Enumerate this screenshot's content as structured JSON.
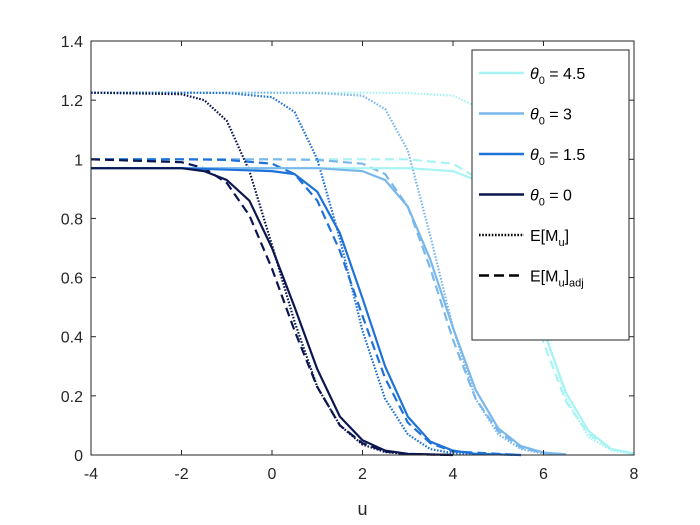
{
  "chart_data": {
    "type": "line",
    "title": "",
    "xlabel": "u",
    "ylabel": "",
    "xlim": [
      -4,
      8
    ],
    "ylim": [
      0,
      1.4
    ],
    "xticks": [
      "-4",
      "-2",
      "0",
      "2",
      "4",
      "6",
      "8"
    ],
    "yticks": [
      "0",
      "0.2",
      "0.4",
      "0.6",
      "0.8",
      "1",
      "1.2",
      "1.4"
    ],
    "grid": false,
    "legend_position": "top-right",
    "legend": {
      "theta_symbol": "θ",
      "theta_sub": "0",
      "expectation_label": "E[M",
      "expectation_sub": "u",
      "expectation_close": "]",
      "adjusted_sub": "adj",
      "entries": [
        {
          "value_text": " = 4.5",
          "color": "#a8f4f4",
          "style": "solid"
        },
        {
          "value_text": " = 3",
          "color": "#7ab8ec",
          "style": "solid"
        },
        {
          "value_text": " = 1.5",
          "color": "#1f72d8",
          "style": "solid"
        },
        {
          "value_text": " = 0",
          "color": "#0b1650",
          "style": "solid"
        },
        {
          "value_text": "",
          "color": "#000000",
          "style": "dotted"
        },
        {
          "value_text": "",
          "color": "#000000",
          "style": "dashed"
        }
      ]
    },
    "series": [
      {
        "theta0": 4.5,
        "kind": "solid",
        "color": "#a8f4f4",
        "x": [
          -4,
          -2,
          0,
          2,
          3,
          4,
          4.5,
          5,
          5.5,
          6,
          6.5,
          7,
          7.5,
          8
        ],
        "y": [
          0.97,
          0.97,
          0.97,
          0.97,
          0.97,
          0.96,
          0.93,
          0.84,
          0.66,
          0.42,
          0.21,
          0.08,
          0.02,
          0.005
        ]
      },
      {
        "theta0": 3,
        "kind": "solid",
        "color": "#7ab8ec",
        "x": [
          -4,
          -2,
          0,
          1,
          2,
          2.5,
          3,
          3.5,
          4,
          4.5,
          5,
          5.5,
          6,
          6.5
        ],
        "y": [
          0.97,
          0.97,
          0.97,
          0.97,
          0.96,
          0.93,
          0.84,
          0.66,
          0.43,
          0.22,
          0.09,
          0.03,
          0.008,
          0.002
        ]
      },
      {
        "theta0": 1.5,
        "kind": "solid",
        "color": "#1f72d8",
        "x": [
          -4,
          -2,
          0,
          0.5,
          1,
          1.5,
          2,
          2.5,
          3,
          3.5,
          4,
          4.5,
          5.5
        ],
        "y": [
          0.97,
          0.97,
          0.96,
          0.95,
          0.89,
          0.75,
          0.53,
          0.3,
          0.13,
          0.045,
          0.015,
          0.004,
          0.0
        ]
      },
      {
        "theta0": 0,
        "kind": "solid",
        "color": "#0b1650",
        "x": [
          -4,
          -2,
          -1.5,
          -1,
          -0.5,
          0,
          0.5,
          1,
          1.5,
          2,
          2.5,
          3,
          4
        ],
        "y": [
          0.97,
          0.97,
          0.96,
          0.93,
          0.86,
          0.7,
          0.5,
          0.29,
          0.13,
          0.05,
          0.015,
          0.004,
          0.0
        ]
      },
      {
        "theta0": 4.5,
        "kind": "dotted",
        "color": "#a8f4f4",
        "x": [
          -4,
          -2,
          0,
          2,
          3,
          4,
          4.5,
          5,
          5.5,
          6,
          6.5,
          7,
          7.5,
          8
        ],
        "y": [
          1.225,
          1.225,
          1.225,
          1.225,
          1.224,
          1.215,
          1.18,
          1.05,
          0.76,
          0.44,
          0.19,
          0.06,
          0.015,
          0.003
        ]
      },
      {
        "theta0": 3,
        "kind": "dotted",
        "color": "#7ab8ec",
        "x": [
          -4,
          -2,
          0,
          1,
          2,
          2.5,
          3,
          3.5,
          4,
          4.5,
          5,
          5.5,
          6,
          6.5
        ],
        "y": [
          1.225,
          1.225,
          1.225,
          1.224,
          1.215,
          1.17,
          1.03,
          0.74,
          0.43,
          0.19,
          0.07,
          0.02,
          0.005,
          0.001
        ]
      },
      {
        "theta0": 1.5,
        "kind": "dotted",
        "color": "#1f72d8",
        "x": [
          -4,
          -2,
          -1,
          0,
          0.5,
          1,
          1.5,
          2,
          2.5,
          3,
          3.5,
          4,
          5.5
        ],
        "y": [
          1.225,
          1.225,
          1.224,
          1.21,
          1.16,
          1.0,
          0.73,
          0.42,
          0.19,
          0.07,
          0.02,
          0.006,
          0.0
        ]
      },
      {
        "theta0": 0,
        "kind": "dotted",
        "color": "#0b1650",
        "x": [
          -4,
          -2,
          -1.5,
          -1,
          -0.5,
          0,
          0.5,
          1,
          1.5,
          2,
          2.5,
          3,
          4
        ],
        "y": [
          1.225,
          1.22,
          1.2,
          1.13,
          0.96,
          0.71,
          0.45,
          0.23,
          0.1,
          0.035,
          0.01,
          0.003,
          0.0
        ]
      },
      {
        "theta0": 4.5,
        "kind": "dashed",
        "color": "#a8f4f4",
        "x": [
          -4,
          -2,
          0,
          2,
          3,
          4,
          4.5,
          5,
          5.5,
          6,
          6.5,
          7,
          7.5,
          8
        ],
        "y": [
          1.0,
          1.0,
          1.0,
          1.0,
          1.0,
          0.985,
          0.94,
          0.83,
          0.62,
          0.38,
          0.18,
          0.07,
          0.02,
          0.005
        ]
      },
      {
        "theta0": 3,
        "kind": "dashed",
        "color": "#7ab8ec",
        "x": [
          -4,
          -2,
          0,
          1,
          2,
          2.5,
          3,
          3.5,
          4,
          4.5,
          5,
          5.5,
          6,
          6.5
        ],
        "y": [
          1.0,
          1.0,
          1.0,
          0.998,
          0.985,
          0.95,
          0.84,
          0.63,
          0.39,
          0.19,
          0.08,
          0.025,
          0.007,
          0.002
        ]
      },
      {
        "theta0": 1.5,
        "kind": "dashed",
        "color": "#1f72d8",
        "x": [
          -4,
          -2,
          -1,
          0,
          0.5,
          1,
          1.5,
          2,
          2.5,
          3,
          3.5,
          4,
          5.5
        ],
        "y": [
          1.0,
          1.0,
          0.998,
          0.985,
          0.95,
          0.86,
          0.69,
          0.47,
          0.26,
          0.11,
          0.04,
          0.012,
          0.0
        ]
      },
      {
        "theta0": 0,
        "kind": "dashed",
        "color": "#0b1650",
        "x": [
          -4,
          -2,
          -1.5,
          -1,
          -0.5,
          0,
          0.5,
          1,
          1.5,
          2,
          2.5,
          3,
          4
        ],
        "y": [
          1.0,
          0.99,
          0.97,
          0.92,
          0.81,
          0.63,
          0.42,
          0.23,
          0.1,
          0.04,
          0.012,
          0.003,
          0.0
        ]
      }
    ]
  }
}
